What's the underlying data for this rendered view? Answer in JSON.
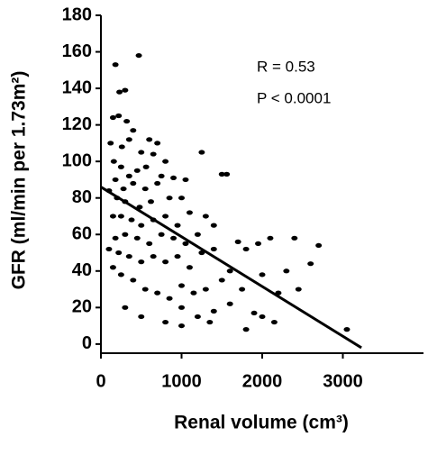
{
  "chart_data": {
    "type": "scatter",
    "x_label": "Renal volume (cm³)",
    "y_label": "GFR (ml/min per 1.73m²)",
    "annotations": [
      "R = 0.53",
      "P < 0.0001"
    ],
    "color": "#000000",
    "xlim": [
      0,
      4000
    ],
    "ylim": [
      -5,
      180
    ],
    "xticks": [
      0,
      1000,
      2000,
      3000
    ],
    "yticks": [
      0,
      20,
      40,
      60,
      80,
      100,
      120,
      140,
      160,
      180
    ],
    "x": [
      180,
      470,
      230,
      300,
      150,
      220,
      320,
      400,
      120,
      260,
      350,
      500,
      600,
      700,
      650,
      800,
      560,
      450,
      160,
      250,
      350,
      180,
      280,
      400,
      550,
      700,
      750,
      900,
      1050,
      1000,
      850,
      620,
      480,
      300,
      200,
      100,
      150,
      250,
      380,
      500,
      650,
      800,
      950,
      1100,
      1250,
      1300,
      1400,
      1500,
      1560,
      1200,
      1050,
      900,
      750,
      600,
      450,
      300,
      180,
      100,
      220,
      350,
      500,
      650,
      800,
      950,
      1100,
      1250,
      1400,
      1600,
      1700,
      1800,
      1950,
      2100,
      2400,
      2700,
      2600,
      2300,
      2000,
      1750,
      1500,
      1300,
      1150,
      1000,
      850,
      700,
      550,
      400,
      250,
      150,
      1000,
      1200,
      1400,
      1600,
      1800,
      2000,
      2200,
      2450,
      1000,
      800,
      500,
      300,
      1350,
      3050,
      2150,
      1900
    ],
    "values": [
      153,
      158,
      138,
      139,
      124,
      125,
      122,
      117,
      110,
      108,
      112,
      105,
      112,
      110,
      104,
      100,
      97,
      95,
      100,
      97,
      92,
      90,
      85,
      88,
      85,
      88,
      92,
      91,
      90,
      80,
      80,
      78,
      75,
      78,
      80,
      84,
      70,
      70,
      68,
      65,
      68,
      70,
      65,
      72,
      105,
      70,
      65,
      93,
      93,
      60,
      55,
      58,
      60,
      55,
      58,
      60,
      58,
      52,
      50,
      48,
      45,
      48,
      45,
      48,
      42,
      50,
      52,
      40,
      56,
      52,
      55,
      58,
      58,
      54,
      44,
      40,
      38,
      30,
      35,
      30,
      28,
      32,
      25,
      28,
      30,
      35,
      38,
      42,
      20,
      15,
      18,
      22,
      8,
      15,
      28,
      30,
      10,
      12,
      15,
      20,
      12,
      8,
      12,
      17
    ],
    "trend": {
      "x": [
        0,
        3230
      ],
      "values": [
        86,
        -2
      ]
    }
  }
}
